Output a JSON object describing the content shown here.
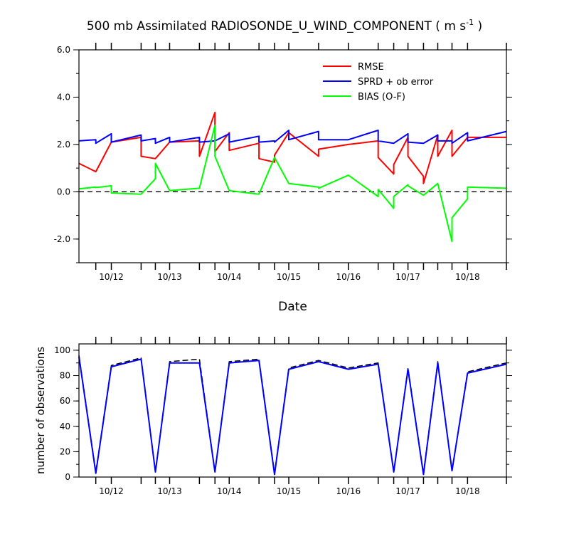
{
  "title": "500 mb Assimilated RADIOSONDE_U_WIND_COMPONENT ( m s",
  "title_sup": "-1",
  "title_close": " )",
  "chart_data": [
    {
      "type": "line",
      "title": "500 mb Assimilated RADIOSONDE_U_WIND_COMPONENT ( m s-1 )",
      "xlabel": "Date",
      "ylabel": "",
      "xlim": [
        0,
        33
      ],
      "ylim": [
        -3,
        6
      ],
      "yticks": [
        -2,
        0,
        2,
        4,
        6
      ],
      "ytick_labels": [
        "-2.0",
        "0.0",
        "2.0",
        "4.0",
        "6.0"
      ],
      "xticks": [
        2.5,
        7.0,
        11.6,
        16.2,
        20.8,
        25.4,
        30.0
      ],
      "xtick_labels": [
        "10/12",
        "10/13",
        "10/14",
        "10/15",
        "10/16",
        "10/17",
        "10/18"
      ],
      "legend_position": "top-right",
      "zero_line": "dashed",
      "series": [
        {
          "name": "RMSE",
          "color": "#ff0000",
          "x": [
            0,
            1.3,
            2.5,
            4.8,
            4.8,
            5.9,
            7.0,
            9.3,
            9.3,
            10.5,
            10.5,
            11.6,
            11.6,
            13.9,
            13.9,
            15.1,
            15.1,
            16.2,
            18.5,
            18.5,
            20.8,
            23.1,
            23.1,
            24.3,
            24.3,
            25.4,
            25.4,
            26.6,
            26.6,
            27.7,
            27.7,
            28.8,
            28.8,
            30.0,
            33.0
          ],
          "y": [
            1.2,
            0.85,
            2.1,
            2.3,
            1.5,
            1.4,
            2.1,
            2.15,
            1.5,
            3.35,
            1.7,
            2.5,
            1.75,
            2.05,
            1.4,
            1.25,
            1.55,
            2.5,
            1.5,
            1.8,
            2.0,
            2.15,
            1.45,
            0.75,
            1.15,
            2.3,
            1.5,
            0.65,
            0.35,
            2.4,
            1.5,
            2.6,
            1.5,
            2.3,
            2.3
          ]
        },
        {
          "name": "SPRD + ob error",
          "color": "#0000ff",
          "x": [
            0,
            1.3,
            1.3,
            2.5,
            2.5,
            4.8,
            4.8,
            5.9,
            5.9,
            7.0,
            7.0,
            9.3,
            9.3,
            10.5,
            10.5,
            11.6,
            11.6,
            13.9,
            13.9,
            15.1,
            15.1,
            16.2,
            16.2,
            18.5,
            18.5,
            20.8,
            23.1,
            23.1,
            24.3,
            24.3,
            25.4,
            25.4,
            26.6,
            26.6,
            27.7,
            27.7,
            28.8,
            28.8,
            30.0,
            30.0,
            33.0
          ],
          "y": [
            2.15,
            2.2,
            2.05,
            2.45,
            2.1,
            2.4,
            2.15,
            2.25,
            2.05,
            2.3,
            2.1,
            2.3,
            2.1,
            2.15,
            2.15,
            2.45,
            2.1,
            2.35,
            2.1,
            2.15,
            2.1,
            2.6,
            2.2,
            2.55,
            2.2,
            2.2,
            2.6,
            2.15,
            2.05,
            2.05,
            2.45,
            2.1,
            2.05,
            2.05,
            2.4,
            2.15,
            2.15,
            2.05,
            2.5,
            2.15,
            2.55
          ]
        },
        {
          "name": "BIAS (O-F)",
          "color": "#00ff00",
          "x": [
            0,
            1.3,
            1.3,
            2.5,
            2.5,
            4.8,
            5.9,
            5.9,
            7.0,
            9.3,
            10.5,
            10.5,
            11.6,
            11.6,
            13.9,
            15.1,
            16.2,
            16.2,
            18.5,
            18.5,
            20.8,
            23.1,
            23.1,
            24.3,
            24.3,
            25.4,
            25.4,
            26.6,
            27.7,
            28.8,
            28.8,
            30.0,
            30.0,
            33.0
          ],
          "y": [
            0.12,
            0.2,
            0.18,
            0.25,
            -0.05,
            -0.1,
            0.55,
            1.2,
            0.05,
            0.15,
            2.8,
            1.5,
            0.05,
            0.05,
            -0.1,
            1.45,
            0.35,
            0.35,
            0.2,
            0.15,
            0.7,
            -0.2,
            0.1,
            -0.7,
            -0.2,
            0.3,
            0.25,
            -0.15,
            0.35,
            -2.1,
            -1.1,
            -0.3,
            0.2,
            0.15
          ]
        }
      ]
    },
    {
      "type": "line",
      "title": "",
      "xlabel": "",
      "ylabel": "number of observations",
      "xlim": [
        0,
        33
      ],
      "ylim": [
        0,
        105
      ],
      "yticks": [
        0,
        20,
        40,
        60,
        80,
        100
      ],
      "ytick_labels": [
        "0",
        "20",
        "40",
        "60",
        "80",
        "100"
      ],
      "xticks": [
        2.5,
        7.0,
        11.6,
        16.2,
        20.8,
        25.4,
        30.0
      ],
      "xtick_labels": [
        "10/12",
        "10/13",
        "10/14",
        "10/15",
        "10/16",
        "10/17",
        "10/18"
      ],
      "series": [
        {
          "color": "#000000",
          "dashed": true,
          "x": [
            0,
            1.3,
            2.5,
            4.8,
            5.9,
            7.0,
            9.3,
            10.5,
            11.6,
            13.9,
            15.1,
            16.2,
            18.5,
            20.8,
            23.1,
            24.3,
            25.4,
            26.6,
            27.7,
            28.8,
            30.0,
            33.0
          ],
          "y": [
            96,
            4,
            88,
            94,
            4,
            91,
            93,
            4,
            91,
            93,
            3,
            86,
            92,
            86,
            90,
            4,
            86,
            3,
            91,
            5,
            83,
            90
          ]
        },
        {
          "color": "#0000ff",
          "dashed": false,
          "x": [
            0,
            1.3,
            2.5,
            4.8,
            5.9,
            7.0,
            9.3,
            10.5,
            11.6,
            13.9,
            15.1,
            16.2,
            18.5,
            20.8,
            23.1,
            24.3,
            25.4,
            26.6,
            27.7,
            28.8,
            30.0,
            33.0
          ],
          "y": [
            95,
            3,
            87,
            93,
            4,
            90,
            90,
            4,
            90,
            92,
            2,
            85,
            91,
            85,
            89,
            4,
            85,
            2,
            90,
            5,
            82,
            89
          ]
        }
      ]
    }
  ]
}
